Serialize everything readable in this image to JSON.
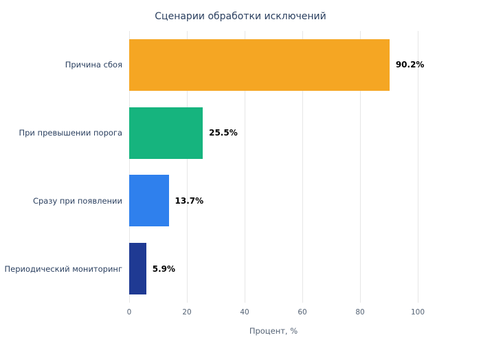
{
  "chart_data": {
    "type": "bar",
    "orientation": "horizontal",
    "title": "Сценарии обработки исключений",
    "categories": [
      "Причина сбоя",
      "При превышении порога",
      "Сразу при появлении",
      "Периодический мониторинг"
    ],
    "values": [
      90.2,
      25.5,
      13.7,
      5.9
    ],
    "value_labels": [
      "90.2%",
      "25.5%",
      "13.7%",
      "5.9%"
    ],
    "bar_colors": [
      "#F5A623",
      "#16B47E",
      "#2F80ED",
      "#1F3A93"
    ],
    "xlabel": "Процент, %",
    "xlim": [
      0,
      100
    ],
    "x_ticks": [
      0,
      20,
      40,
      60,
      80,
      100
    ],
    "grid": true,
    "legend": "none",
    "background": "#ffffff",
    "gridline_color": "#e6e6e6"
  }
}
